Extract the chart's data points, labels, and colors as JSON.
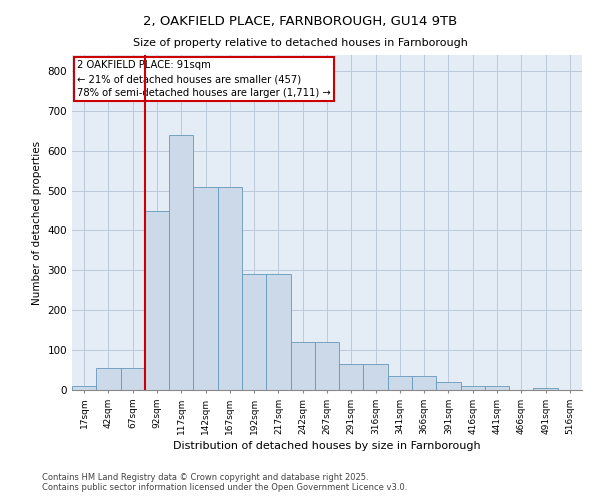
{
  "title_line1": "2, OAKFIELD PLACE, FARNBOROUGH, GU14 9TB",
  "title_line2": "Size of property relative to detached houses in Farnborough",
  "xlabel": "Distribution of detached houses by size in Farnborough",
  "ylabel": "Number of detached properties",
  "categories": [
    "17sqm",
    "42sqm",
    "67sqm",
    "92sqm",
    "117sqm",
    "142sqm",
    "167sqm",
    "192sqm",
    "217sqm",
    "242sqm",
    "267sqm",
    "291sqm",
    "316sqm",
    "341sqm",
    "366sqm",
    "391sqm",
    "416sqm",
    "441sqm",
    "466sqm",
    "491sqm",
    "516sqm"
  ],
  "values": [
    10,
    55,
    55,
    450,
    640,
    510,
    510,
    290,
    290,
    120,
    120,
    65,
    65,
    35,
    35,
    20,
    10,
    10,
    0,
    5,
    0
  ],
  "bar_color": "#ccd9e8",
  "bar_edge_color": "#6699bb",
  "grid_color": "#bbc8d8",
  "background_color": "#e4ecf5",
  "annotation_box_color": "#ffffff",
  "annotation_border_color": "#cc0000",
  "vline_color": "#cc0000",
  "vline_x": 2.5,
  "annotation_text": "2 OAKFIELD PLACE: 91sqm\n← 21% of detached houses are smaller (457)\n78% of semi-detached houses are larger (1,711) →",
  "footer_line1": "Contains HM Land Registry data © Crown copyright and database right 2025.",
  "footer_line2": "Contains public sector information licensed under the Open Government Licence v3.0.",
  "ylim": [
    0,
    840
  ],
  "yticks": [
    0,
    100,
    200,
    300,
    400,
    500,
    600,
    700,
    800
  ]
}
